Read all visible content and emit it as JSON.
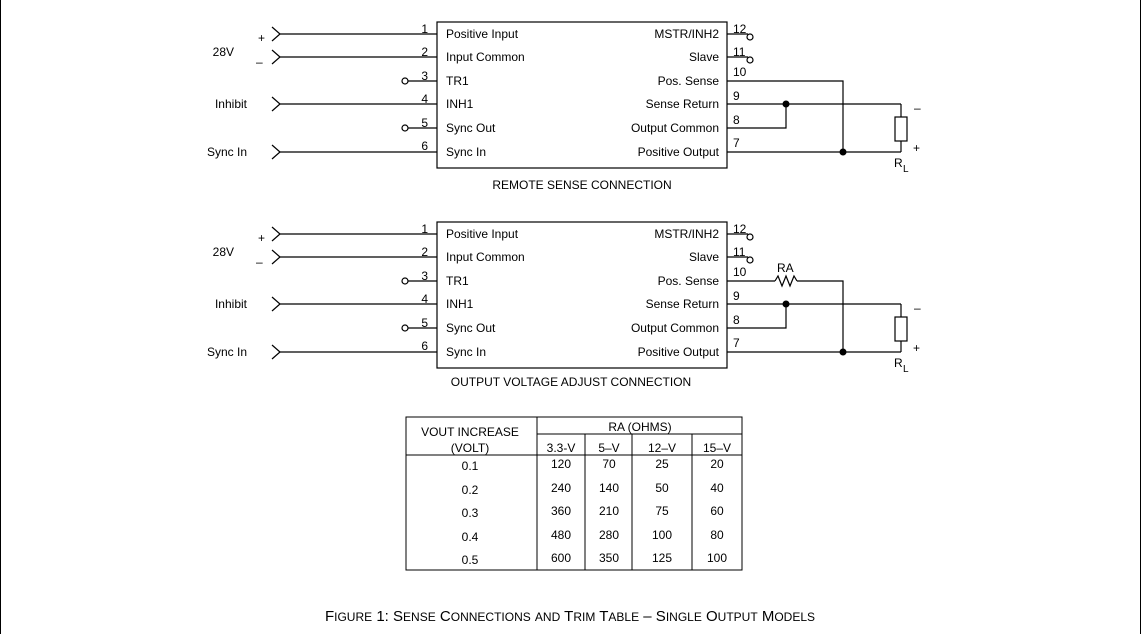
{
  "diagram_top": {
    "supply_label": "28V",
    "plus_sign": "+",
    "minus_sign": "–",
    "left_signals": [
      "Inhibit",
      "Sync In"
    ],
    "left_pins": [
      "1",
      "2",
      "3",
      "4",
      "5",
      "6"
    ],
    "left_functions": [
      "Positive Input",
      "Input Common",
      "TR1",
      "INH1",
      "Sync Out",
      "Sync In"
    ],
    "right_pins": [
      "12",
      "11",
      "10",
      "9",
      "8",
      "7"
    ],
    "right_functions": [
      "MSTR/INH2",
      "Slave",
      "Pos. Sense",
      "Sense Return",
      "Output Common",
      "Positive Output"
    ],
    "load_label_main": "R",
    "load_label_sub": "L",
    "caption": "REMOTE SENSE CONNECTION"
  },
  "diagram_bottom": {
    "supply_label": "28V",
    "plus_sign": "+",
    "minus_sign": "–",
    "left_signals": [
      "Inhibit",
      "Sync In"
    ],
    "left_pins": [
      "1",
      "2",
      "3",
      "4",
      "5",
      "6"
    ],
    "left_functions": [
      "Positive Input",
      "Input Common",
      "TR1",
      "INH1",
      "Sync Out",
      "Sync In"
    ],
    "right_pins": [
      "12",
      "11",
      "10",
      "9",
      "8",
      "7"
    ],
    "right_functions": [
      "MSTR/INH2",
      "Slave",
      "Pos. Sense",
      "Sense Return",
      "Output Common",
      "Positive Output"
    ],
    "resistor_label": "RA",
    "load_label_main": "R",
    "load_label_sub": "L",
    "caption": "OUTPUT VOLTAGE ADJUST CONNECTION"
  },
  "trim_table": {
    "header_left_line1": "VOUT INCREASE",
    "header_left_line2": "(VOLT)",
    "header_group": "RA (OHMS)",
    "columns": [
      "3.3-V",
      "5–V",
      "12–V",
      "15–V"
    ],
    "rows": [
      {
        "vout": "0.1",
        "values": [
          "120",
          "70",
          "25",
          "20"
        ]
      },
      {
        "vout": "0.2",
        "values": [
          "240",
          "140",
          "50",
          "40"
        ]
      },
      {
        "vout": "0.3",
        "values": [
          "360",
          "210",
          "75",
          "60"
        ]
      },
      {
        "vout": "0.4",
        "values": [
          "480",
          "280",
          "100",
          "80"
        ]
      },
      {
        "vout": "0.5",
        "values": [
          "600",
          "350",
          "125",
          "100"
        ]
      }
    ]
  },
  "figure_caption": {
    "prefix_initial": "F",
    "prefix_rest": "IGURE",
    "number": "1: ",
    "words": [
      {
        "initial": "S",
        "rest": "ENSE"
      },
      {
        "initial": "C",
        "rest": "ONNECTIONS"
      },
      {
        "initial": "",
        "rest": "AND"
      },
      {
        "initial": "T",
        "rest": "RIM"
      },
      {
        "initial": "T",
        "rest": "ABLE"
      },
      {
        "initial": "",
        "rest": "–"
      },
      {
        "initial": "S",
        "rest": "INGLE"
      },
      {
        "initial": "O",
        "rest": "UTPUT"
      },
      {
        "initial": "M",
        "rest": "ODELS"
      }
    ]
  }
}
